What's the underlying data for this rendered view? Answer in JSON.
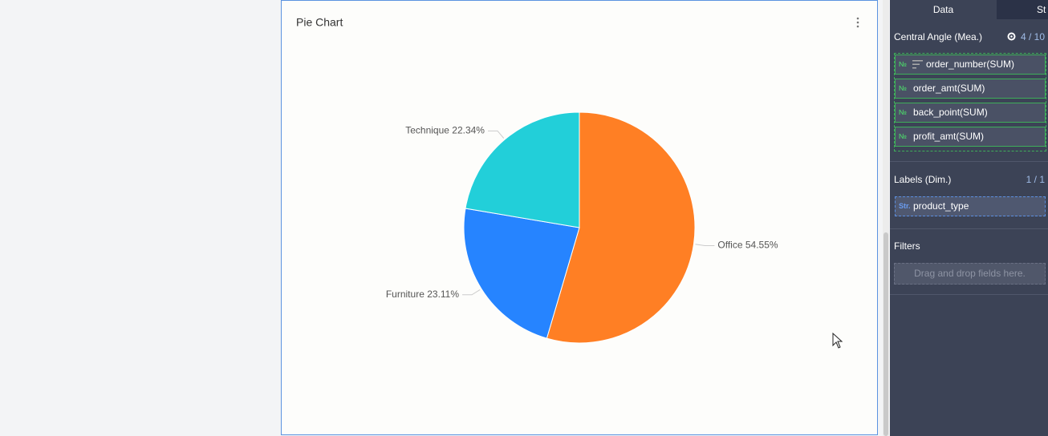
{
  "chart_data": {
    "type": "pie",
    "title": "Pie Chart",
    "categories": [
      "Office",
      "Furniture",
      "Technique"
    ],
    "values": [
      54.55,
      23.11,
      22.34
    ],
    "value_labels": [
      "54.55%",
      "23.11%",
      "22.34%"
    ],
    "colors": [
      "#ff7f24",
      "#2684ff",
      "#22cfd9"
    ]
  },
  "tabs": [
    "Data",
    "St"
  ],
  "panel": {
    "measures": {
      "title": "Central Angle (Mea.)",
      "count": "4 / 10",
      "fields": [
        {
          "badge": "№",
          "name": "order_number(SUM)"
        },
        {
          "badge": "№",
          "name": "order_amt(SUM)"
        },
        {
          "badge": "№",
          "name": "back_point(SUM)"
        },
        {
          "badge": "№",
          "name": "profit_amt(SUM)"
        }
      ]
    },
    "dimensions": {
      "title": "Labels (Dim.)",
      "count": "1 / 1",
      "fields": [
        {
          "badge": "Str.",
          "name": "product_type"
        }
      ]
    },
    "filters": {
      "title": "Filters",
      "placeholder": "Drag and drop fields here."
    }
  }
}
